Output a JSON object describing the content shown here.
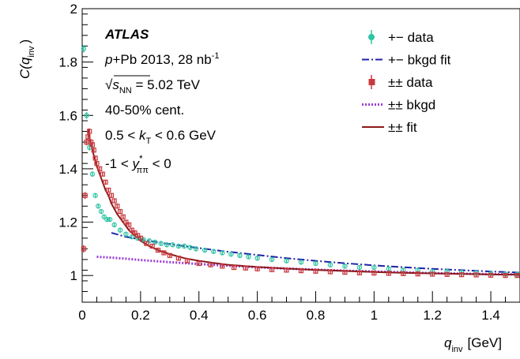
{
  "chart_data": {
    "type": "scatter",
    "xlabel_main": "q",
    "xlabel_sub": "inv",
    "xlabel_unit": "[GeV]",
    "ylabel_main": "C(q",
    "ylabel_sub": "inv",
    "ylabel_close": ")",
    "xlim": [
      0,
      1.5
    ],
    "ylim": [
      0.9,
      2.0
    ],
    "x_ticks": [
      0,
      0.2,
      0.4,
      0.6,
      0.8,
      1,
      1.2,
      1.4
    ],
    "x_tick_labels": [
      "0",
      "0.2",
      "0.4",
      "0.6",
      "0.8",
      "1",
      "1.2",
      "1.4"
    ],
    "y_ticks": [
      1,
      1.2,
      1.4,
      1.6,
      1.8,
      2
    ],
    "y_tick_labels": [
      "1",
      "1.2",
      "1.4",
      "1.6",
      "1.8",
      "2"
    ],
    "annotations": {
      "experiment": "ATLAS",
      "dataset_pre": "p",
      "dataset_mid": "+Pb 2013, 28 nb",
      "dataset_sup": "-1",
      "energy_var": "s",
      "energy_sub": "NN",
      "energy_rest": " = 5.02 TeV",
      "centrality": "40-50% cent.",
      "kt_pre": "0.5 < ",
      "kt_var": "k",
      "kt_sub": "T",
      "kt_post": " < 0.6 GeV",
      "rap_pre": "-1 < ",
      "rap_var": "y",
      "rap_sup": "*",
      "rap_sub": "ππ",
      "rap_post": " < 0"
    },
    "legend_placement": "top-right",
    "series": [
      {
        "name": "+− data",
        "kind": "markers",
        "color": "#2ec4a3",
        "x": [
          0.005,
          0.015,
          0.025,
          0.035,
          0.045,
          0.055,
          0.065,
          0.075,
          0.085,
          0.095,
          0.11,
          0.13,
          0.15,
          0.17,
          0.19,
          0.21,
          0.23,
          0.25,
          0.27,
          0.29,
          0.31,
          0.33,
          0.35,
          0.37,
          0.39,
          0.42,
          0.45,
          0.48,
          0.51,
          0.54,
          0.57,
          0.6,
          0.65,
          0.7,
          0.75,
          0.8,
          0.85,
          0.9,
          0.95,
          1.0,
          1.05,
          1.1,
          1.15,
          1.2,
          1.25,
          1.3,
          1.35,
          1.4,
          1.45,
          1.49
        ],
        "y": [
          1.85,
          1.6,
          1.48,
          1.38,
          1.3,
          1.26,
          1.24,
          1.22,
          1.21,
          1.21,
          1.19,
          1.17,
          1.155,
          1.145,
          1.14,
          1.135,
          1.13,
          1.125,
          1.12,
          1.115,
          1.115,
          1.11,
          1.11,
          1.105,
          1.1,
          1.095,
          1.09,
          1.085,
          1.08,
          1.075,
          1.07,
          1.065,
          1.06,
          1.055,
          1.05,
          1.045,
          1.04,
          1.035,
          1.03,
          1.03,
          1.025,
          1.02,
          1.02,
          1.015,
          1.015,
          1.012,
          1.01,
          1.008,
          1.006,
          1.005
        ]
      },
      {
        "name": "+− bkgd fit",
        "kind": "line",
        "style": "dashdot",
        "color": "#1f22a8",
        "x": [
          0.1,
          0.15,
          0.2,
          0.25,
          0.3,
          0.35,
          0.4,
          0.45,
          0.5,
          0.55,
          0.6,
          0.7,
          0.8,
          0.9,
          1.0,
          1.1,
          1.2,
          1.3,
          1.4,
          1.5
        ],
        "y": [
          1.16,
          1.145,
          1.135,
          1.126,
          1.118,
          1.11,
          1.103,
          1.096,
          1.089,
          1.083,
          1.077,
          1.065,
          1.055,
          1.046,
          1.038,
          1.031,
          1.025,
          1.02,
          1.015,
          1.011
        ]
      },
      {
        "name": "±± data",
        "kind": "markers",
        "color": "#c8393e",
        "x": [
          0.005,
          0.01,
          0.015,
          0.02,
          0.025,
          0.03,
          0.035,
          0.04,
          0.045,
          0.05,
          0.06,
          0.07,
          0.08,
          0.09,
          0.1,
          0.11,
          0.12,
          0.13,
          0.14,
          0.15,
          0.16,
          0.17,
          0.18,
          0.19,
          0.2,
          0.22,
          0.24,
          0.26,
          0.28,
          0.3,
          0.33,
          0.36,
          0.4,
          0.44,
          0.48,
          0.52,
          0.56,
          0.6,
          0.65,
          0.7,
          0.75,
          0.8,
          0.85,
          0.9,
          0.95,
          1.0,
          1.05,
          1.1,
          1.15,
          1.2,
          1.25,
          1.3,
          1.35,
          1.4,
          1.45,
          1.49
        ],
        "y": [
          1.1,
          1.3,
          1.5,
          1.52,
          1.54,
          1.5,
          1.49,
          1.47,
          1.44,
          1.42,
          1.4,
          1.38,
          1.35,
          1.32,
          1.3,
          1.28,
          1.26,
          1.24,
          1.22,
          1.2,
          1.19,
          1.17,
          1.16,
          1.15,
          1.14,
          1.12,
          1.11,
          1.095,
          1.085,
          1.075,
          1.065,
          1.055,
          1.045,
          1.04,
          1.035,
          1.03,
          1.028,
          1.025,
          1.022,
          1.02,
          1.018,
          1.016,
          1.014,
          1.012,
          1.01,
          1.009,
          1.008,
          1.007,
          1.006,
          1.005,
          1.004,
          1.003,
          1.002,
          1.001,
          1.0,
          1.0
        ]
      },
      {
        "name": "±± bkgd",
        "kind": "line",
        "style": "dotted",
        "color": "#9a3fd6",
        "x": [
          0.05,
          0.1,
          0.15,
          0.2,
          0.3,
          0.4,
          0.5,
          0.6,
          0.7,
          0.8,
          0.9,
          1.0,
          1.1,
          1.2,
          1.3,
          1.4,
          1.5
        ],
        "y": [
          1.07,
          1.067,
          1.063,
          1.058,
          1.05,
          1.043,
          1.037,
          1.031,
          1.026,
          1.022,
          1.018,
          1.015,
          1.012,
          1.009,
          1.007,
          1.005,
          1.004
        ]
      },
      {
        "name": "±± fit",
        "kind": "line",
        "style": "solid",
        "color": "#8b1a1a",
        "x": [
          0.02,
          0.03,
          0.04,
          0.05,
          0.06,
          0.07,
          0.08,
          0.09,
          0.1,
          0.12,
          0.14,
          0.16,
          0.18,
          0.2,
          0.23,
          0.26,
          0.3,
          0.35,
          0.4,
          0.45,
          0.5,
          0.6,
          0.7,
          0.8,
          0.9,
          1.0,
          1.1,
          1.2,
          1.3,
          1.4,
          1.5
        ],
        "y": [
          1.55,
          1.49,
          1.45,
          1.41,
          1.38,
          1.35,
          1.32,
          1.3,
          1.27,
          1.23,
          1.2,
          1.17,
          1.15,
          1.13,
          1.11,
          1.095,
          1.08,
          1.065,
          1.055,
          1.047,
          1.04,
          1.032,
          1.026,
          1.021,
          1.017,
          1.013,
          1.01,
          1.008,
          1.006,
          1.004,
          1.003
        ]
      }
    ]
  }
}
